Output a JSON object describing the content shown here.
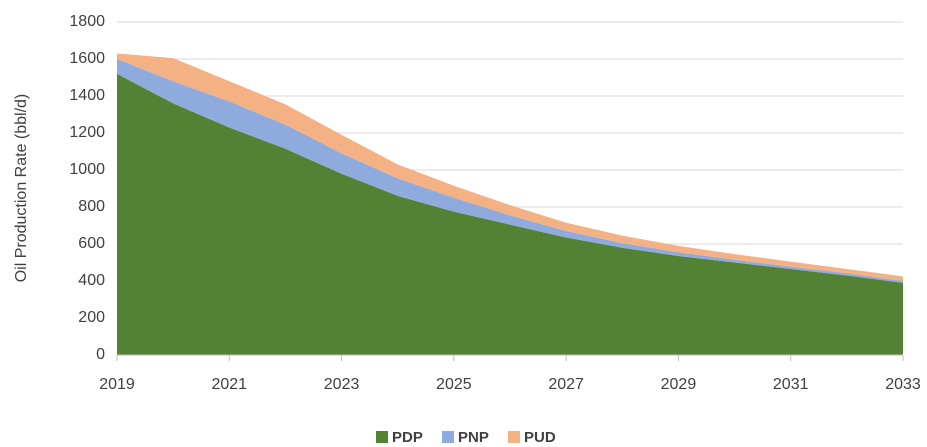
{
  "chart_data": {
    "type": "stacked_area",
    "y_label": "Oil Production Rate (bbl/d)",
    "x": [
      2019,
      2020,
      2021,
      2022,
      2023,
      2024,
      2025,
      2026,
      2027,
      2028,
      2029,
      2030,
      2031,
      2032,
      2033
    ],
    "series": [
      {
        "name": "PDP",
        "color": "#548235",
        "values": [
          1520,
          1360,
          1230,
          1115,
          980,
          860,
          775,
          705,
          635,
          580,
          535,
          500,
          465,
          430,
          390
        ]
      },
      {
        "name": "PNP",
        "color": "#8faadc",
        "values": [
          80,
          120,
          140,
          130,
          110,
          95,
          75,
          50,
          35,
          25,
          20,
          15,
          13,
          12,
          10
        ]
      },
      {
        "name": "PUD",
        "color": "#f4b183",
        "values": [
          30,
          125,
          110,
          110,
          100,
          75,
          65,
          55,
          45,
          40,
          35,
          30,
          27,
          23,
          25
        ]
      }
    ],
    "xlim": [
      2019,
      2033
    ],
    "xticks": [
      2019,
      2021,
      2023,
      2025,
      2027,
      2029,
      2031,
      2033
    ],
    "ylim": [
      0,
      1800
    ],
    "yticks": [
      0,
      200,
      400,
      600,
      800,
      1000,
      1200,
      1400,
      1600,
      1800
    ],
    "grid": true,
    "legend": "bottom"
  }
}
